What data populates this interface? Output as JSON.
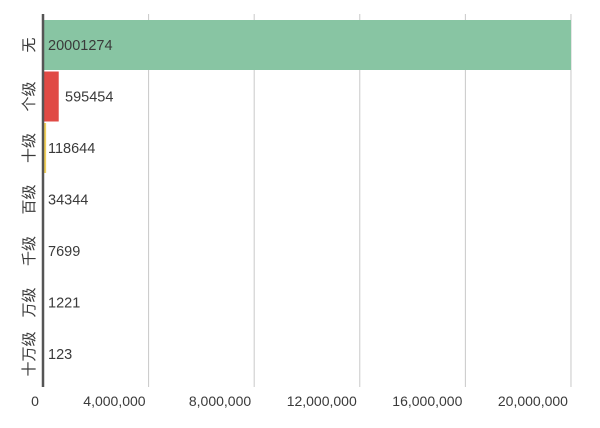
{
  "chart_data": {
    "type": "bar",
    "orientation": "horizontal",
    "title": "",
    "xlabel": "",
    "ylabel": "",
    "categories": [
      "无",
      "个级",
      "十级",
      "百级",
      "千级",
      "万级",
      "十万级"
    ],
    "values": [
      20001274,
      595454,
      118644,
      34344,
      7699,
      1221,
      123
    ],
    "value_labels": [
      "20001274",
      "595454",
      "118644",
      "34344",
      "7699",
      "1221",
      "123"
    ],
    "bar_colors": [
      "#88c5a3",
      "#e04a45",
      "#f2d05a",
      "#4f6fa8",
      "#7f7f7f",
      "#7f7f7f",
      "#7f7f7f"
    ],
    "xlim": [
      0,
      20001274
    ],
    "xticks": [
      0,
      4000000,
      8000000,
      12000000,
      16000000,
      20000000
    ],
    "xtick_labels": [
      "0",
      "4,000,000",
      "8,000,000",
      "12,000,000",
      "16,000,000",
      "20,000,000"
    ],
    "grid": true,
    "legend": "none"
  }
}
